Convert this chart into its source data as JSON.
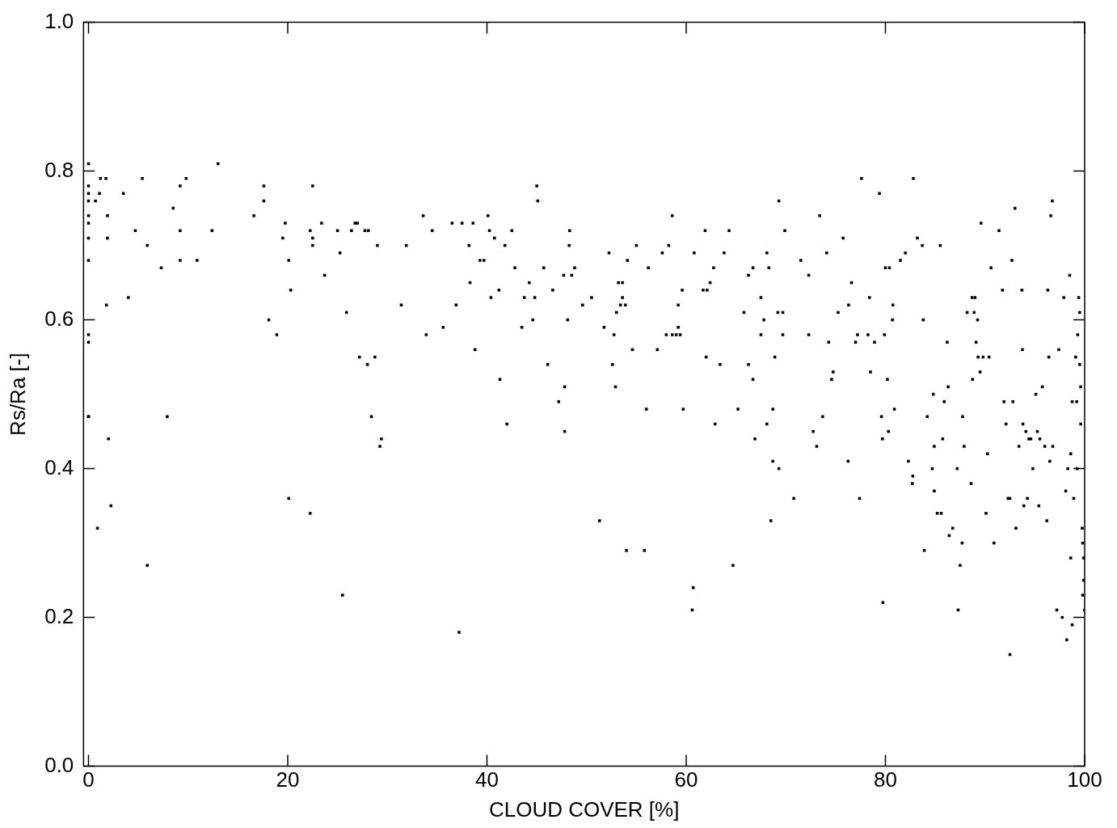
{
  "chart_data": {
    "type": "scatter",
    "xlabel": "CLOUD COVER [%]",
    "ylabel": "Rs/Ra [-]",
    "marker": "square",
    "xlim": [
      -0.5,
      100
    ],
    "ylim": [
      0,
      1
    ],
    "xticks": [
      0,
      20,
      40,
      60,
      80,
      100
    ],
    "yticks": [
      {
        "value": 0,
        "label": "0.0"
      },
      {
        "value": 0.2,
        "label": "0.2"
      },
      {
        "value": 0.4,
        "label": "0.4"
      },
      {
        "value": 0.6,
        "label": "0.6"
      },
      {
        "value": 0.8,
        "label": "0.8"
      },
      {
        "value": 1,
        "label": "1.0"
      }
    ],
    "series": [
      {
        "color": "#000000",
        "x": [
          0,
          0,
          0,
          0,
          0,
          0,
          0,
          0,
          0,
          0,
          0,
          0,
          0.7,
          1.1,
          1.2,
          1.75,
          0.9,
          1.8,
          1.9,
          1.9,
          2,
          2.25,
          3.5,
          4,
          4.7,
          5.4,
          5.9,
          5.9,
          7.3,
          7.9,
          8.5,
          9.2,
          9.2,
          9.2,
          9.8,
          10.9,
          12.4,
          13,
          16.6,
          17.6,
          17.6,
          18.1,
          18.9,
          19.5,
          19.75,
          20.1,
          20.3,
          20.1,
          22.25,
          22.5,
          22.5,
          22.5,
          22.25,
          23.4,
          23.7,
          25,
          25.25,
          25.5,
          25.9,
          26.4,
          26.75,
          27,
          27.2,
          27.75,
          28,
          28.1,
          28.4,
          28.75,
          29,
          29.25,
          29.4,
          31.4,
          31.9,
          33.6,
          33.9,
          34.5,
          35.6,
          36.5,
          36.9,
          37.2,
          37.5,
          38.2,
          38.3,
          38.6,
          38.8,
          39.3,
          39.7,
          40.1,
          40.25,
          40.4,
          40.75,
          41.2,
          41.3,
          41.8,
          42,
          42.5,
          42.8,
          43.5,
          43.75,
          44.25,
          44.6,
          44.8,
          45,
          45.1,
          45.7,
          46.1,
          46.6,
          47.2,
          47.7,
          47.8,
          47.8,
          48.1,
          48.3,
          48.25,
          48.5,
          48.8,
          49.6,
          50.5,
          51.3,
          51.75,
          52.25,
          52.6,
          52.75,
          52.9,
          53,
          53.2,
          53.4,
          53.6,
          53.6,
          53.9,
          54.1,
          54,
          54.6,
          55,
          55.8,
          56,
          56.2,
          57.1,
          57.6,
          58,
          58.25,
          58.6,
          58.6,
          59,
          59.2,
          59.2,
          59.4,
          59.6,
          59.7,
          60.6,
          60.7,
          60.8,
          61.7,
          61.9,
          62,
          62.1,
          62.4,
          62.75,
          62.9,
          63.4,
          63.8,
          64.3,
          64.7,
          65.2,
          65.8,
          66.25,
          66.25,
          66.7,
          66.7,
          66.9,
          67.5,
          67.5,
          67.8,
          68.1,
          68.1,
          68.3,
          68.5,
          68.7,
          68.7,
          68.9,
          69.2,
          69.3,
          69.3,
          69.7,
          69.7,
          69.9,
          70.8,
          71.5,
          72.3,
          72.3,
          72.75,
          73.1,
          73.4,
          73.7,
          74.1,
          74.3,
          74.6,
          74.75,
          75.25,
          75.75,
          76.25,
          76.3,
          76.6,
          77,
          77.2,
          77.4,
          77.6,
          78.25,
          78.4,
          78.5,
          78.9,
          79.4,
          79.6,
          79.7,
          79.75,
          79.9,
          80,
          80.2,
          80.3,
          80.4,
          80.7,
          80.75,
          80.9,
          81.5,
          82,
          82.3,
          82.7,
          82.75,
          82.8,
          83.2,
          83.7,
          83.8,
          83.9,
          84.2,
          84.7,
          84.8,
          84.9,
          84.9,
          85.2,
          85.5,
          85.6,
          85.75,
          85.9,
          86.2,
          86.3,
          86.4,
          86.75,
          87.2,
          87.3,
          87.5,
          87.7,
          87.75,
          87.9,
          88.2,
          88.6,
          88.7,
          88.75,
          88.9,
          89,
          89.1,
          89.25,
          89.3,
          89.5,
          89.6,
          89.8,
          90.1,
          90.25,
          90.4,
          90.6,
          90.9,
          91.4,
          91.75,
          91.9,
          92.1,
          92.3,
          92.5,
          92.5,
          92.7,
          92.8,
          93,
          93.1,
          93.4,
          93.7,
          93.75,
          93.8,
          93.9,
          94.1,
          94.25,
          94.4,
          94.6,
          94.8,
          95.1,
          95.25,
          95.4,
          95.5,
          95.75,
          96,
          96.2,
          96.3,
          96.4,
          96.5,
          96.6,
          96.75,
          96.8,
          97.2,
          97.4,
          97.75,
          97.9,
          98.1,
          98.2,
          98.3,
          98.5,
          98.6,
          98.6,
          98.75,
          98.75,
          98.9,
          99.1,
          99.2,
          99.25,
          99.3,
          99.4,
          99.5,
          99.5,
          99.6,
          99.6,
          99.75,
          99.8,
          99.9,
          99.9,
          100,
          99.8
        ],
        "values": [
          0.81,
          0.78,
          0.77,
          0.76,
          0.74,
          0.73,
          0.71,
          0.68,
          0.58,
          0.57,
          0.47,
          0.47,
          0.76,
          0.77,
          0.79,
          0.79,
          0.32,
          0.62,
          0.74,
          0.71,
          0.44,
          0.35,
          0.77,
          0.63,
          0.72,
          0.79,
          0.7,
          0.27,
          0.67,
          0.47,
          0.75,
          0.78,
          0.72,
          0.68,
          0.79,
          0.68,
          0.72,
          0.81,
          0.74,
          0.78,
          0.76,
          0.6,
          0.58,
          0.71,
          0.73,
          0.68,
          0.64,
          0.36,
          0.72,
          0.71,
          0.7,
          0.78,
          0.34,
          0.73,
          0.66,
          0.72,
          0.69,
          0.23,
          0.61,
          0.72,
          0.73,
          0.73,
          0.55,
          0.72,
          0.54,
          0.72,
          0.47,
          0.55,
          0.7,
          0.43,
          0.44,
          0.62,
          0.7,
          0.74,
          0.58,
          0.72,
          0.59,
          0.73,
          0.62,
          0.18,
          0.73,
          0.7,
          0.65,
          0.73,
          0.56,
          0.68,
          0.68,
          0.74,
          0.72,
          0.63,
          0.71,
          0.64,
          0.52,
          0.7,
          0.46,
          0.72,
          0.67,
          0.59,
          0.63,
          0.65,
          0.6,
          0.63,
          0.78,
          0.76,
          0.67,
          0.54,
          0.64,
          0.49,
          0.66,
          0.45,
          0.51,
          0.6,
          0.72,
          0.7,
          0.66,
          0.67,
          0.62,
          0.63,
          0.33,
          0.59,
          0.69,
          0.54,
          0.58,
          0.51,
          0.61,
          0.65,
          0.62,
          0.65,
          0.63,
          0.62,
          0.68,
          0.29,
          0.56,
          0.7,
          0.29,
          0.48,
          0.67,
          0.56,
          0.69,
          0.58,
          0.7,
          0.74,
          0.58,
          0.58,
          0.62,
          0.59,
          0.58,
          0.64,
          0.48,
          0.21,
          0.24,
          0.69,
          0.64,
          0.72,
          0.55,
          0.64,
          0.65,
          0.67,
          0.46,
          0.54,
          0.69,
          0.72,
          0.27,
          0.48,
          0.61,
          0.66,
          0.54,
          0.67,
          0.52,
          0.44,
          0.58,
          0.63,
          0.6,
          0.69,
          0.46,
          0.67,
          0.33,
          0.41,
          0.48,
          0.55,
          0.61,
          0.76,
          0.4,
          0.58,
          0.61,
          0.72,
          0.36,
          0.68,
          0.66,
          0.58,
          0.45,
          0.43,
          0.74,
          0.47,
          0.69,
          0.57,
          0.52,
          0.53,
          0.61,
          0.71,
          0.41,
          0.62,
          0.65,
          0.57,
          0.58,
          0.36,
          0.79,
          0.58,
          0.63,
          0.53,
          0.57,
          0.77,
          0.47,
          0.44,
          0.22,
          0.58,
          0.67,
          0.52,
          0.45,
          0.67,
          0.6,
          0.62,
          0.48,
          0.68,
          0.69,
          0.41,
          0.38,
          0.39,
          0.79,
          0.71,
          0.7,
          0.6,
          0.29,
          0.47,
          0.4,
          0.5,
          0.43,
          0.37,
          0.34,
          0.7,
          0.34,
          0.44,
          0.49,
          0.57,
          0.51,
          0.31,
          0.32,
          0.4,
          0.21,
          0.27,
          0.3,
          0.47,
          0.43,
          0.61,
          0.38,
          0.63,
          0.52,
          0.61,
          0.63,
          0.57,
          0.6,
          0.55,
          0.53,
          0.73,
          0.55,
          0.34,
          0.42,
          0.55,
          0.67,
          0.3,
          0.72,
          0.64,
          0.49,
          0.46,
          0.36,
          0.36,
          0.15,
          0.68,
          0.49,
          0.75,
          0.32,
          0.43,
          0.64,
          0.56,
          0.46,
          0.35,
          0.45,
          0.36,
          0.44,
          0.44,
          0.4,
          0.5,
          0.45,
          0.35,
          0.44,
          0.51,
          0.43,
          0.33,
          0.64,
          0.55,
          0.41,
          0.74,
          0.76,
          0.43,
          0.21,
          0.56,
          0.2,
          0.63,
          0.37,
          0.17,
          0.4,
          0.66,
          0.42,
          0.28,
          0.49,
          0.19,
          0.36,
          0.55,
          0.49,
          0.4,
          0.58,
          0.63,
          0.61,
          0.54,
          0.46,
          0.51,
          0.32,
          0.3,
          0.28,
          0.25,
          0.21,
          0.23
        ]
      }
    ]
  }
}
